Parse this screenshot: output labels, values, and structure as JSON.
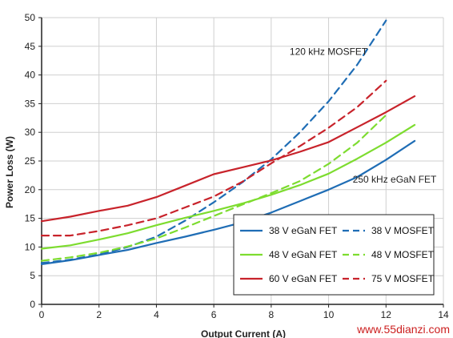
{
  "chart_data": {
    "type": "line",
    "xlabel": "Output Current (A)",
    "ylabel": "Power Loss (W)",
    "xlim": [
      0,
      14
    ],
    "ylim": [
      0,
      50
    ],
    "xticks": [
      0,
      2,
      4,
      6,
      8,
      10,
      12,
      14
    ],
    "yticks": [
      0,
      5,
      10,
      15,
      20,
      25,
      30,
      35,
      40,
      45,
      50
    ],
    "grid": true,
    "legend_position": "bottom-right",
    "colors": {
      "blue": "#1f6db5",
      "green": "#7ddc2f",
      "red": "#c8232b"
    },
    "annotations": [
      {
        "text": "120 kHz MOSFET",
        "x": 10,
        "y": 43.5
      },
      {
        "text": "250 kHz eGaN FET",
        "x": 12.3,
        "y": 21.2
      }
    ],
    "series": [
      {
        "name": "38 V eGaN FET",
        "color": "#1f6db5",
        "dash": false,
        "x": [
          0,
          1,
          2,
          3,
          4,
          5,
          6,
          7,
          8,
          9,
          10,
          11,
          12,
          13
        ],
        "y": [
          7.0,
          7.7,
          8.6,
          9.5,
          10.7,
          11.8,
          13.0,
          14.3,
          16.0,
          18.0,
          20.0,
          22.2,
          25.2,
          28.5
        ]
      },
      {
        "name": "38 V MOSFET",
        "color": "#1f6db5",
        "dash": true,
        "x": [
          0,
          1,
          2,
          3,
          4,
          5,
          6,
          7,
          8,
          9,
          10,
          11,
          12
        ],
        "y": [
          7.2,
          7.8,
          8.7,
          10.0,
          11.8,
          14.6,
          17.8,
          21.3,
          25.3,
          30.0,
          35.4,
          41.8,
          49.5
        ]
      },
      {
        "name": "48 V eGaN FET",
        "color": "#7ddc2f",
        "dash": false,
        "x": [
          0,
          1,
          2,
          3,
          4,
          5,
          6,
          7,
          8,
          9,
          10,
          11,
          12,
          13
        ],
        "y": [
          9.7,
          10.3,
          11.3,
          12.4,
          13.8,
          15.1,
          16.3,
          17.6,
          19.1,
          20.8,
          22.8,
          25.4,
          28.2,
          31.3
        ]
      },
      {
        "name": "48 V MOSFET",
        "color": "#7ddc2f",
        "dash": true,
        "x": [
          0,
          1,
          2,
          3,
          4,
          5,
          6,
          7,
          8,
          9,
          10,
          11,
          12
        ],
        "y": [
          7.6,
          8.2,
          9.0,
          10.1,
          11.5,
          13.4,
          15.4,
          17.4,
          19.4,
          21.5,
          24.5,
          28.2,
          33.0
        ]
      },
      {
        "name": "60 V eGaN FET",
        "color": "#c8232b",
        "dash": false,
        "x": [
          0,
          1,
          2,
          3,
          4,
          5,
          6,
          7,
          8,
          9,
          10,
          11,
          12,
          13
        ],
        "y": [
          14.5,
          15.3,
          16.3,
          17.2,
          18.7,
          20.7,
          22.7,
          23.9,
          25.1,
          26.6,
          28.3,
          30.9,
          33.5,
          36.3
        ]
      },
      {
        "name": "75 V MOSFET",
        "color": "#c8232b",
        "dash": true,
        "x": [
          0,
          1,
          2,
          3,
          4,
          5,
          6,
          7,
          8,
          9,
          10,
          11,
          12
        ],
        "y": [
          12.0,
          12.0,
          12.8,
          13.8,
          15.0,
          16.9,
          18.8,
          21.4,
          24.6,
          27.6,
          30.8,
          34.4,
          39.0
        ]
      }
    ]
  },
  "watermark": "www.55dianzi.com"
}
